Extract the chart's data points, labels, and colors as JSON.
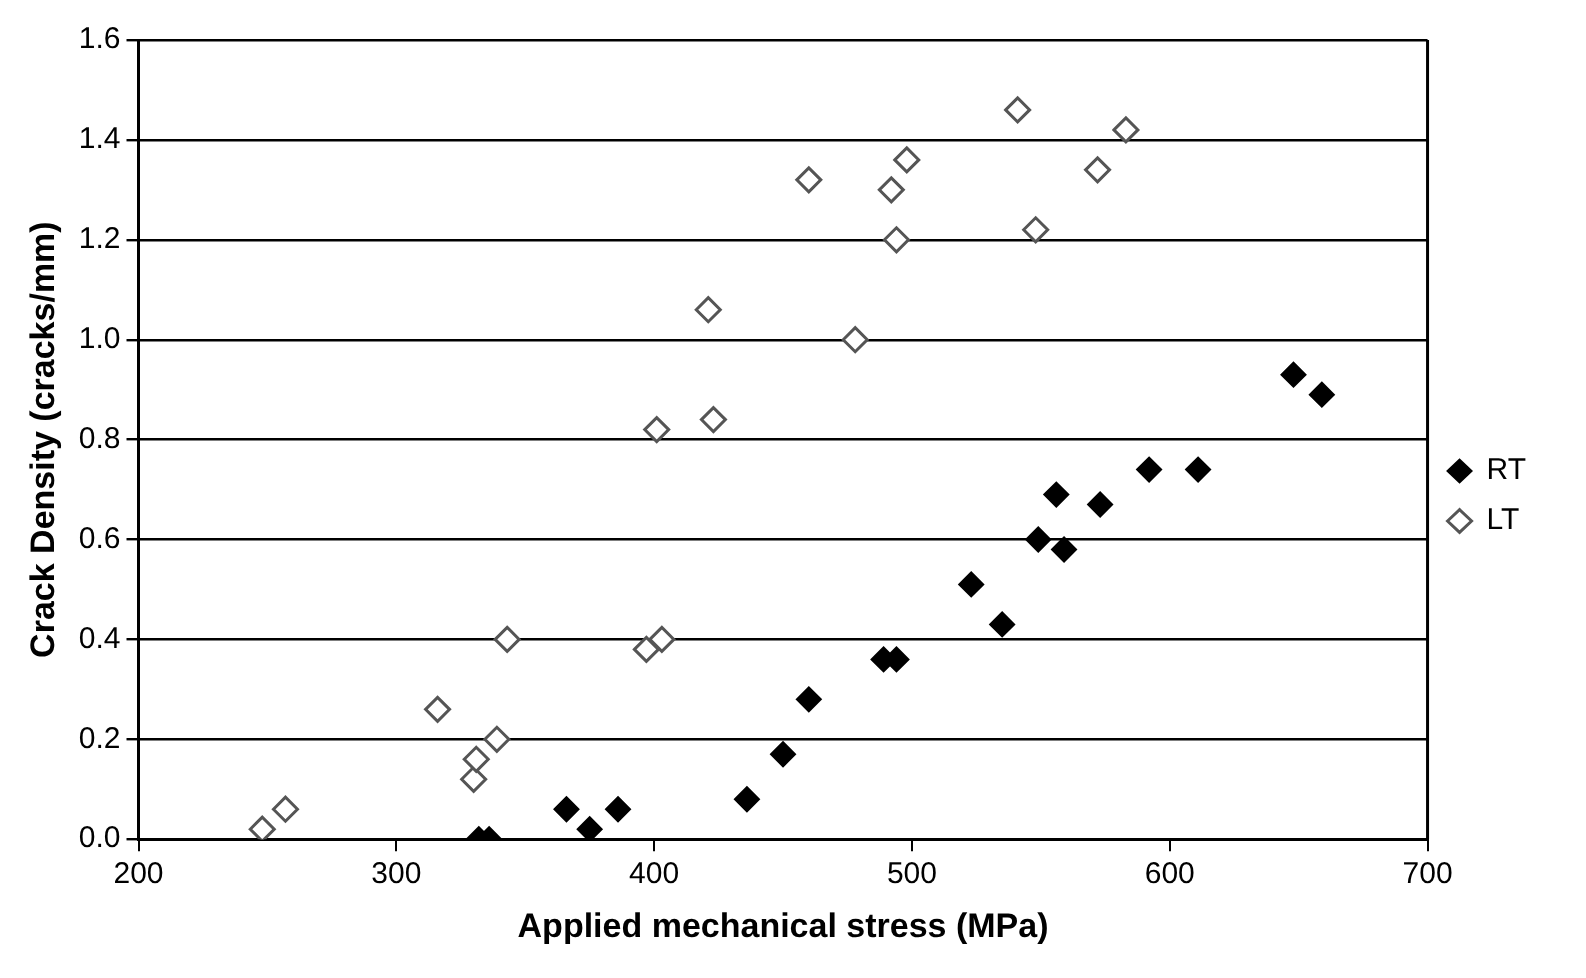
{
  "chart_data": {
    "type": "scatter",
    "xlabel": "Applied mechanical stress (MPa)",
    "ylabel": "Crack Density (cracks/mm)",
    "xlim": [
      200,
      700
    ],
    "xticks": [
      200,
      300,
      400,
      500,
      600,
      700
    ],
    "ylim": [
      0,
      1.6
    ],
    "yticks": [
      {
        "value": 0,
        "label": "0.0"
      },
      {
        "value": 0.2,
        "label": "0.2"
      },
      {
        "value": 0.4,
        "label": "0.4"
      },
      {
        "value": 0.6,
        "label": "0.6"
      },
      {
        "value": 0.8,
        "label": "0.8"
      },
      {
        "value": 1,
        "label": "1.0"
      },
      {
        "value": 1.2,
        "label": "1.2"
      },
      {
        "value": 1.4,
        "label": "1.4"
      },
      {
        "value": 1.6,
        "label": "1.6"
      }
    ],
    "grid": "y",
    "legend": "right",
    "marker": "diamond",
    "series": [
      {
        "name": "RT",
        "color": "#000000",
        "x": [
          332,
          336,
          366,
          375,
          386,
          436,
          450,
          460,
          489,
          494,
          523,
          535,
          549,
          556,
          559,
          573,
          592,
          611,
          648,
          659
        ],
        "values": [
          0,
          0,
          0.06,
          0.02,
          0.06,
          0.08,
          0.17,
          0.28,
          0.36,
          0.36,
          0.51,
          0.43,
          0.6,
          0.69,
          0.58,
          0.67,
          0.74,
          0.74,
          0.93,
          0.89
        ]
      },
      {
        "name": "LT",
        "color": "#555555",
        "x": [
          248,
          257,
          316,
          330,
          331,
          339,
          343,
          397,
          401,
          403,
          421,
          423,
          460,
          478,
          492,
          494,
          498,
          541,
          548,
          572,
          583
        ],
        "values": [
          0.02,
          0.06,
          0.26,
          0.12,
          0.16,
          0.2,
          0.4,
          0.38,
          0.82,
          0.4,
          1.06,
          0.84,
          1.32,
          1.0,
          1.3,
          1.2,
          1.36,
          1.46,
          1.22,
          1.34,
          1.42
        ]
      }
    ]
  }
}
